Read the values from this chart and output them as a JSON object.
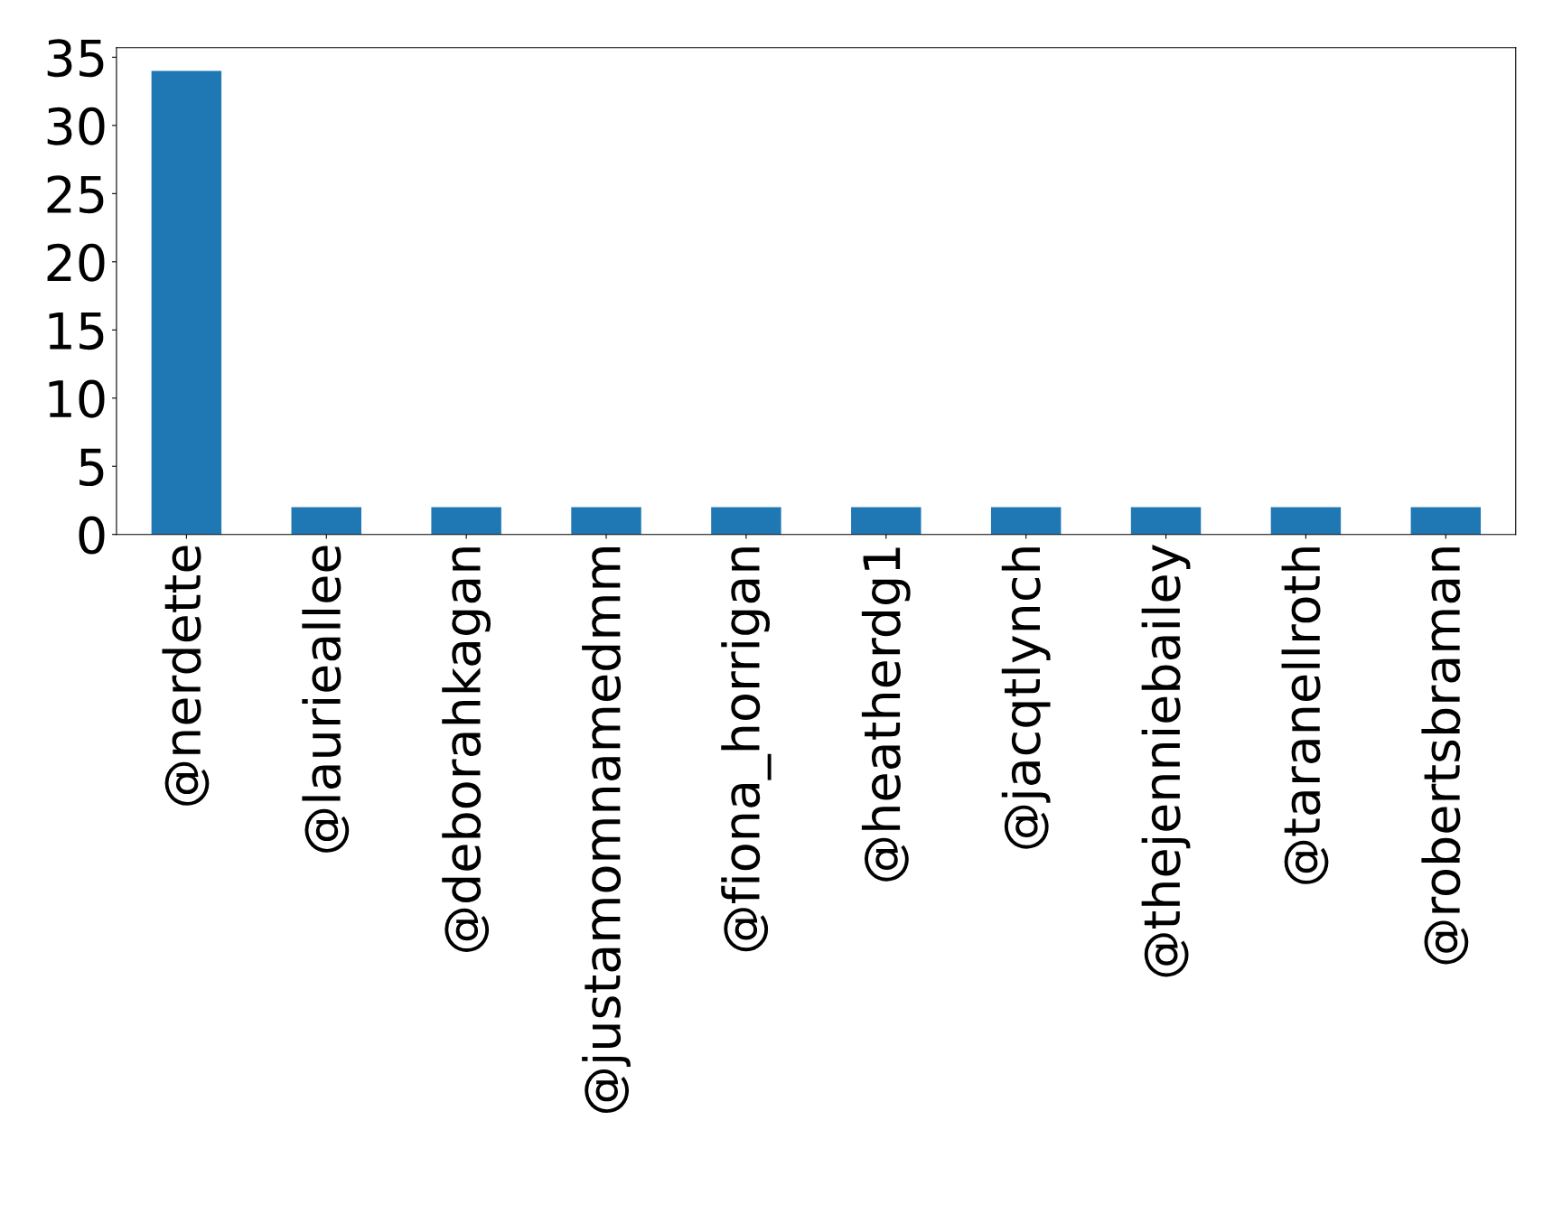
{
  "chart_data": {
    "type": "bar",
    "categories": [
      "@nerdette",
      "@laurieallee",
      "@deborahkagan",
      "@justamomnamedmm",
      "@fiona_horrigan",
      "@heatherdg1",
      "@jacqtlynch",
      "@thejenniebailey",
      "@taranellroth",
      "@robertsbraman"
    ],
    "values": [
      34,
      2,
      2,
      2,
      2,
      2,
      2,
      2,
      2,
      2
    ],
    "color": "#1f77b4",
    "ylim": [
      0,
      35.7
    ],
    "yticks": [
      0,
      5,
      10,
      15,
      20,
      25,
      30,
      35
    ],
    "grid": false,
    "legend": false
  }
}
